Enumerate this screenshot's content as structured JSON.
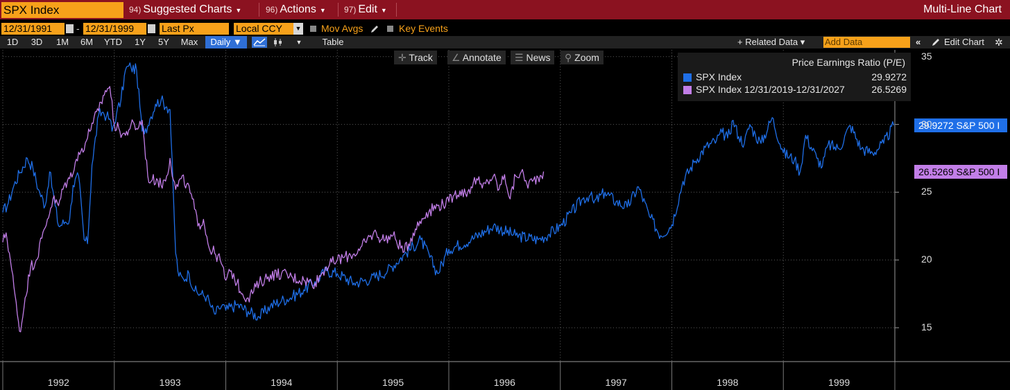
{
  "header": {
    "ticker": "SPX Index",
    "menus": [
      {
        "num": "94)",
        "label": "Suggested Charts"
      },
      {
        "num": "96)",
        "label": "Actions"
      },
      {
        "num": "97)",
        "label": "Edit"
      }
    ],
    "view_title": "Multi-Line Chart"
  },
  "options": {
    "start_date": "12/31/1991",
    "end_date": "12/31/1999",
    "field": "Last Px",
    "currency": "Local CCY",
    "mov_avgs": "Mov Avgs",
    "key_events": "Key Events"
  },
  "periods": [
    "1D",
    "3D",
    "1M",
    "6M",
    "YTD",
    "1Y",
    "5Y",
    "Max"
  ],
  "frequency": "Daily ▼",
  "table_label": "Table",
  "related_data": "+ Related Data ▾",
  "add_data_placeholder": "Add Data",
  "edit_chart": "Edit Chart",
  "tools": {
    "track": "Track",
    "annotate": "Annotate",
    "news": "News",
    "zoom": "Zoom"
  },
  "colors": {
    "series_blue": "#1f6fe8",
    "series_purple": "#c27ee8",
    "accent_orange": "#f7a11a",
    "header_red": "#8b1220"
  },
  "chart_data": {
    "type": "line",
    "legend": {
      "title": "Price Earnings Ratio (P/E)",
      "placement": "top-right",
      "rows": [
        {
          "name": "SPX Index",
          "value": "29.9272"
        },
        {
          "name": "SPX Index 12/31/2019-12/31/2027",
          "value": "26.5269"
        }
      ]
    },
    "last_value_tags": [
      "29.9272 S&P 500 I",
      "26.5269 S&P 500 I"
    ],
    "y_ticks": [
      "15",
      "20",
      "25",
      "30",
      "35"
    ],
    "x_ticks": [
      "1992",
      "1993",
      "1994",
      "1995",
      "1996",
      "1997",
      "1998",
      "1999"
    ],
    "ylim": [
      12.5,
      35.5
    ],
    "xlim": [
      1992.0,
      2000.0
    ],
    "grid": true,
    "series": [
      {
        "name": "SPX Index",
        "color": "#1f6fe8",
        "x": [
          1992.0,
          1992.05,
          1992.1,
          1992.15,
          1992.22,
          1992.27,
          1992.32,
          1992.38,
          1992.42,
          1992.47,
          1992.5,
          1992.56,
          1992.6,
          1992.63,
          1992.68,
          1992.73,
          1992.76,
          1992.8,
          1992.86,
          1992.9,
          1992.93,
          1992.96,
          1992.98,
          1993.02,
          1993.06,
          1993.1,
          1993.13,
          1993.15,
          1993.2,
          1993.25,
          1993.3,
          1993.32,
          1993.37,
          1993.42,
          1993.47,
          1993.5,
          1993.55,
          1993.58,
          1993.62,
          1993.67,
          1993.72,
          1993.77,
          1993.83,
          1993.87,
          1993.9,
          1993.94,
          1993.97,
          1994.0,
          1994.1,
          1994.2,
          1994.3,
          1994.4,
          1994.5,
          1994.6,
          1994.7,
          1994.8,
          1994.9,
          1995.0,
          1995.15,
          1995.3,
          1995.45,
          1995.6,
          1995.75,
          1995.9,
          1996.0,
          1996.2,
          1996.4,
          1996.6,
          1996.8,
          1996.9,
          1997.0,
          1997.1,
          1997.2,
          1997.27,
          1997.3,
          1997.4,
          1997.5,
          1997.6,
          1997.7,
          1997.8,
          1997.9,
          1998.0,
          1998.1,
          1998.2,
          1998.3,
          1998.4,
          1998.45,
          1998.5,
          1998.55,
          1998.6,
          1998.65,
          1998.7,
          1998.75,
          1998.8,
          1998.9,
          1999.0,
          1999.1,
          1999.15,
          1999.2,
          1999.3,
          1999.35,
          1999.4,
          1999.5,
          1999.6,
          1999.7,
          1999.8,
          1999.9,
          1999.99
        ],
        "y": [
          23.5,
          24.2,
          25.5,
          26.4,
          27.5,
          26.8,
          25.2,
          24.0,
          26.5,
          24.0,
          22.5,
          22.8,
          23.0,
          25.5,
          26.2,
          21.5,
          21.2,
          27.0,
          30.7,
          30.9,
          30.6,
          30.4,
          29.5,
          30.8,
          31.8,
          34.0,
          34.3,
          34.2,
          34.0,
          29.5,
          29.9,
          30.4,
          31.5,
          31.8,
          31.3,
          31.1,
          20.5,
          18.8,
          18.6,
          19.0,
          17.7,
          17.5,
          17.3,
          16.5,
          16.0,
          16.4,
          16.7,
          16.3,
          16.7,
          16.2,
          15.8,
          16.6,
          17.0,
          17.3,
          17.8,
          18.4,
          19.2,
          19.0,
          18.3,
          18.6,
          19.2,
          20.4,
          21.5,
          19.0,
          20.8,
          21.5,
          22.5,
          21.8,
          21.5,
          21.9,
          22.5,
          23.5,
          24.5,
          24.8,
          24.2,
          25.0,
          24.3,
          23.9,
          25.4,
          23.2,
          21.8,
          22.6,
          25.8,
          27.2,
          28.3,
          28.8,
          29.4,
          29.0,
          30.3,
          29.1,
          28.6,
          30.0,
          29.2,
          28.6,
          30.5,
          27.9,
          27.4,
          26.5,
          29.2,
          27.5,
          26.9,
          28.5,
          28.2,
          29.9272,
          28.2,
          27.9,
          28.6,
          29.9272
        ]
      },
      {
        "name": "SPX Index 12/31/2019-12/31/2027",
        "color": "#c27ee8",
        "x": [
          1992.0,
          1992.03,
          1992.06,
          1992.1,
          1992.13,
          1992.16,
          1992.2,
          1992.25,
          1992.3,
          1992.35,
          1992.4,
          1992.45,
          1992.5,
          1992.55,
          1992.6,
          1992.65,
          1992.7,
          1992.75,
          1992.8,
          1992.86,
          1992.92,
          1992.96,
          1993.0,
          1993.05,
          1993.1,
          1993.15,
          1993.2,
          1993.25,
          1993.3,
          1993.33,
          1993.38,
          1993.42,
          1993.47,
          1993.5,
          1993.55,
          1993.6,
          1993.65,
          1993.7,
          1993.75,
          1993.8,
          1993.85,
          1993.9,
          1993.95,
          1994.0,
          1994.05,
          1994.1,
          1994.15,
          1994.2,
          1994.3,
          1994.4,
          1994.5,
          1994.6,
          1994.7,
          1994.8,
          1994.9,
          1995.0,
          1995.1,
          1995.2,
          1995.3,
          1995.35,
          1995.4,
          1995.5,
          1995.6,
          1995.7,
          1995.8,
          1995.9,
          1996.0,
          1996.05,
          1996.1,
          1996.15,
          1996.2,
          1996.25,
          1996.3,
          1996.35,
          1996.4,
          1996.45,
          1996.5,
          1996.55,
          1996.6,
          1996.65,
          1996.7,
          1996.75,
          1996.8,
          1996.85
        ],
        "y": [
          21.3,
          22.0,
          20.5,
          18.0,
          16.0,
          14.7,
          17.2,
          19.5,
          20.0,
          21.6,
          23.0,
          24.5,
          24.0,
          25.5,
          26.0,
          27.2,
          28.0,
          28.8,
          30.1,
          31.0,
          32.5,
          32.8,
          30.0,
          29.5,
          29.2,
          30.0,
          29.7,
          30.3,
          26.2,
          25.8,
          26.0,
          25.5,
          26.2,
          27.5,
          25.2,
          26.0,
          25.6,
          24.5,
          22.5,
          23.0,
          20.9,
          20.5,
          20.0,
          18.5,
          19.2,
          18.3,
          17.5,
          17.2,
          18.3,
          18.9,
          19.0,
          18.7,
          18.5,
          18.3,
          19.5,
          20.0,
          20.3,
          20.7,
          21.8,
          22.0,
          21.5,
          21.8,
          20.6,
          22.3,
          23.5,
          24.0,
          24.3,
          24.8,
          25.1,
          24.9,
          25.4,
          26.0,
          25.3,
          25.8,
          26.2,
          25.2,
          26.3,
          24.5,
          26.2,
          26.5,
          25.6,
          25.8,
          26.1,
          26.5269
        ]
      }
    ]
  }
}
